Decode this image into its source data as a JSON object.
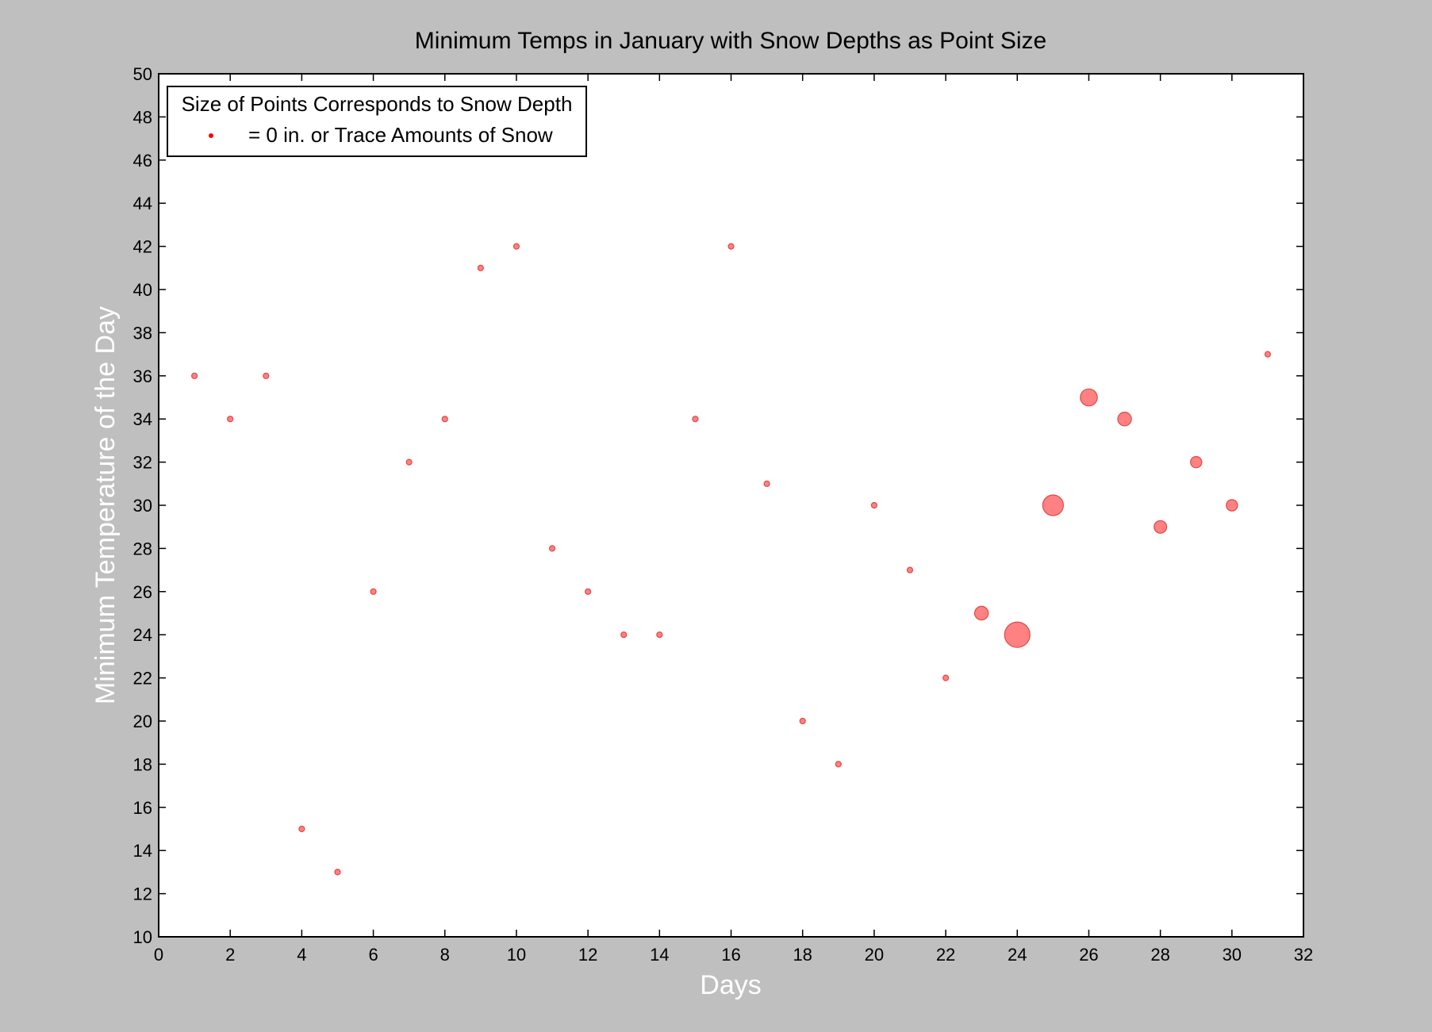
{
  "chart_data": {
    "type": "scatter",
    "title": "Minimum Temps in January with Snow Depths as Point Size",
    "xlabel": "Days",
    "ylabel": "Minimum Temperature of the Day",
    "xlim": [
      0,
      32
    ],
    "ylim": [
      10,
      50
    ],
    "xticks": [
      0,
      2,
      4,
      6,
      8,
      10,
      12,
      14,
      16,
      18,
      20,
      22,
      24,
      26,
      28,
      30,
      32
    ],
    "yticks": [
      10,
      12,
      14,
      16,
      18,
      20,
      22,
      24,
      26,
      28,
      30,
      32,
      34,
      36,
      38,
      40,
      42,
      44,
      46,
      48,
      50
    ],
    "grid": false,
    "legend": {
      "placement": "top-left",
      "title": "Size of Points Corresponds to Snow Depth",
      "entries": [
        {
          "label": "= 0 in. or Trace Amounts of Snow",
          "color": "#ff0000"
        }
      ]
    },
    "point_color": "#ff6b6b",
    "points": [
      {
        "x": 1,
        "y": 36,
        "size": 0
      },
      {
        "x": 2,
        "y": 34,
        "size": 0
      },
      {
        "x": 3,
        "y": 36,
        "size": 0
      },
      {
        "x": 4,
        "y": 15,
        "size": 0
      },
      {
        "x": 5,
        "y": 13,
        "size": 0
      },
      {
        "x": 6,
        "y": 26,
        "size": 0
      },
      {
        "x": 7,
        "y": 32,
        "size": 0
      },
      {
        "x": 8,
        "y": 34,
        "size": 0
      },
      {
        "x": 9,
        "y": 41,
        "size": 0
      },
      {
        "x": 10,
        "y": 42,
        "size": 0
      },
      {
        "x": 11,
        "y": 28,
        "size": 0
      },
      {
        "x": 12,
        "y": 26,
        "size": 0
      },
      {
        "x": 13,
        "y": 24,
        "size": 0
      },
      {
        "x": 14,
        "y": 24,
        "size": 0
      },
      {
        "x": 15,
        "y": 34,
        "size": 0
      },
      {
        "x": 16,
        "y": 42,
        "size": 0
      },
      {
        "x": 17,
        "y": 31,
        "size": 0
      },
      {
        "x": 18,
        "y": 20,
        "size": 0
      },
      {
        "x": 19,
        "y": 18,
        "size": 0
      },
      {
        "x": 20,
        "y": 30,
        "size": 0
      },
      {
        "x": 21,
        "y": 27,
        "size": 0
      },
      {
        "x": 22,
        "y": 22,
        "size": 0
      },
      {
        "x": 23,
        "y": 25,
        "size": 2
      },
      {
        "x": 24,
        "y": 24,
        "size": 12
      },
      {
        "x": 25,
        "y": 30,
        "size": 7
      },
      {
        "x": 26,
        "y": 35,
        "size": 4
      },
      {
        "x": 27,
        "y": 34,
        "size": 2
      },
      {
        "x": 28,
        "y": 29,
        "size": 1.5
      },
      {
        "x": 29,
        "y": 32,
        "size": 1
      },
      {
        "x": 30,
        "y": 30,
        "size": 1
      },
      {
        "x": 31,
        "y": 37,
        "size": 0
      }
    ]
  }
}
